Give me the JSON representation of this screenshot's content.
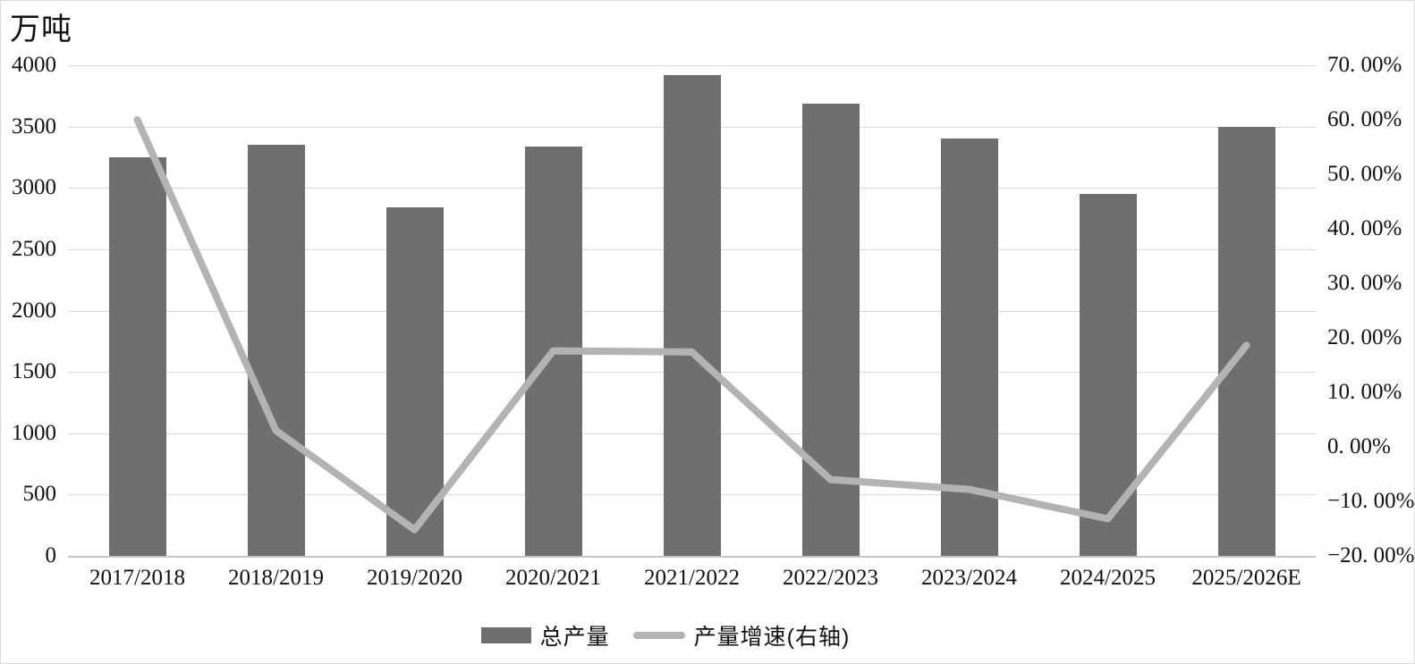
{
  "title": {
    "unit": "万吨"
  },
  "colors": {
    "bar": "#6f6f6f",
    "line": "#b3b3b3",
    "grid": "#d9d9d9",
    "baseline": "#c4c4c4",
    "text": "#111111"
  },
  "chart_data": {
    "type": "bar+line",
    "title": "",
    "unit_label": "万吨",
    "categories": [
      "2017/2018",
      "2018/2019",
      "2019/2020",
      "2020/2021",
      "2021/2022",
      "2022/2023",
      "2023/2024",
      "2024/2025",
      "2025/2026E"
    ],
    "series": [
      {
        "name": "总产量",
        "type": "bar",
        "axis": "left",
        "unit": "万吨",
        "values": [
          3250,
          3350,
          2840,
          3340,
          3920,
          3690,
          3400,
          2950,
          3500
        ]
      },
      {
        "name": "产量增速(右轴)",
        "type": "line",
        "axis": "right",
        "unit": "%",
        "values": [
          60.0,
          3.0,
          -15.2,
          17.6,
          17.4,
          -6.0,
          -7.8,
          -13.2,
          18.6
        ]
      }
    ],
    "left_axis": {
      "label": "万吨",
      "min": 0,
      "max": 4000,
      "step": 500,
      "ticks": [
        "4000",
        "3500",
        "3000",
        "2500",
        "2000",
        "1500",
        "1000",
        "500",
        "0"
      ]
    },
    "right_axis": {
      "min": -20,
      "max": 70,
      "step": 10,
      "ticks": [
        "70. 00%",
        "60. 00%",
        "50. 00%",
        "40. 00%",
        "30. 00%",
        "20. 00%",
        "10. 00%",
        "0. 00%",
        "−10. 00%",
        "−20. 00%"
      ]
    },
    "legend": {
      "position": "bottom",
      "items": [
        "总产量",
        "产量增速(右轴)"
      ]
    },
    "grid": true
  }
}
